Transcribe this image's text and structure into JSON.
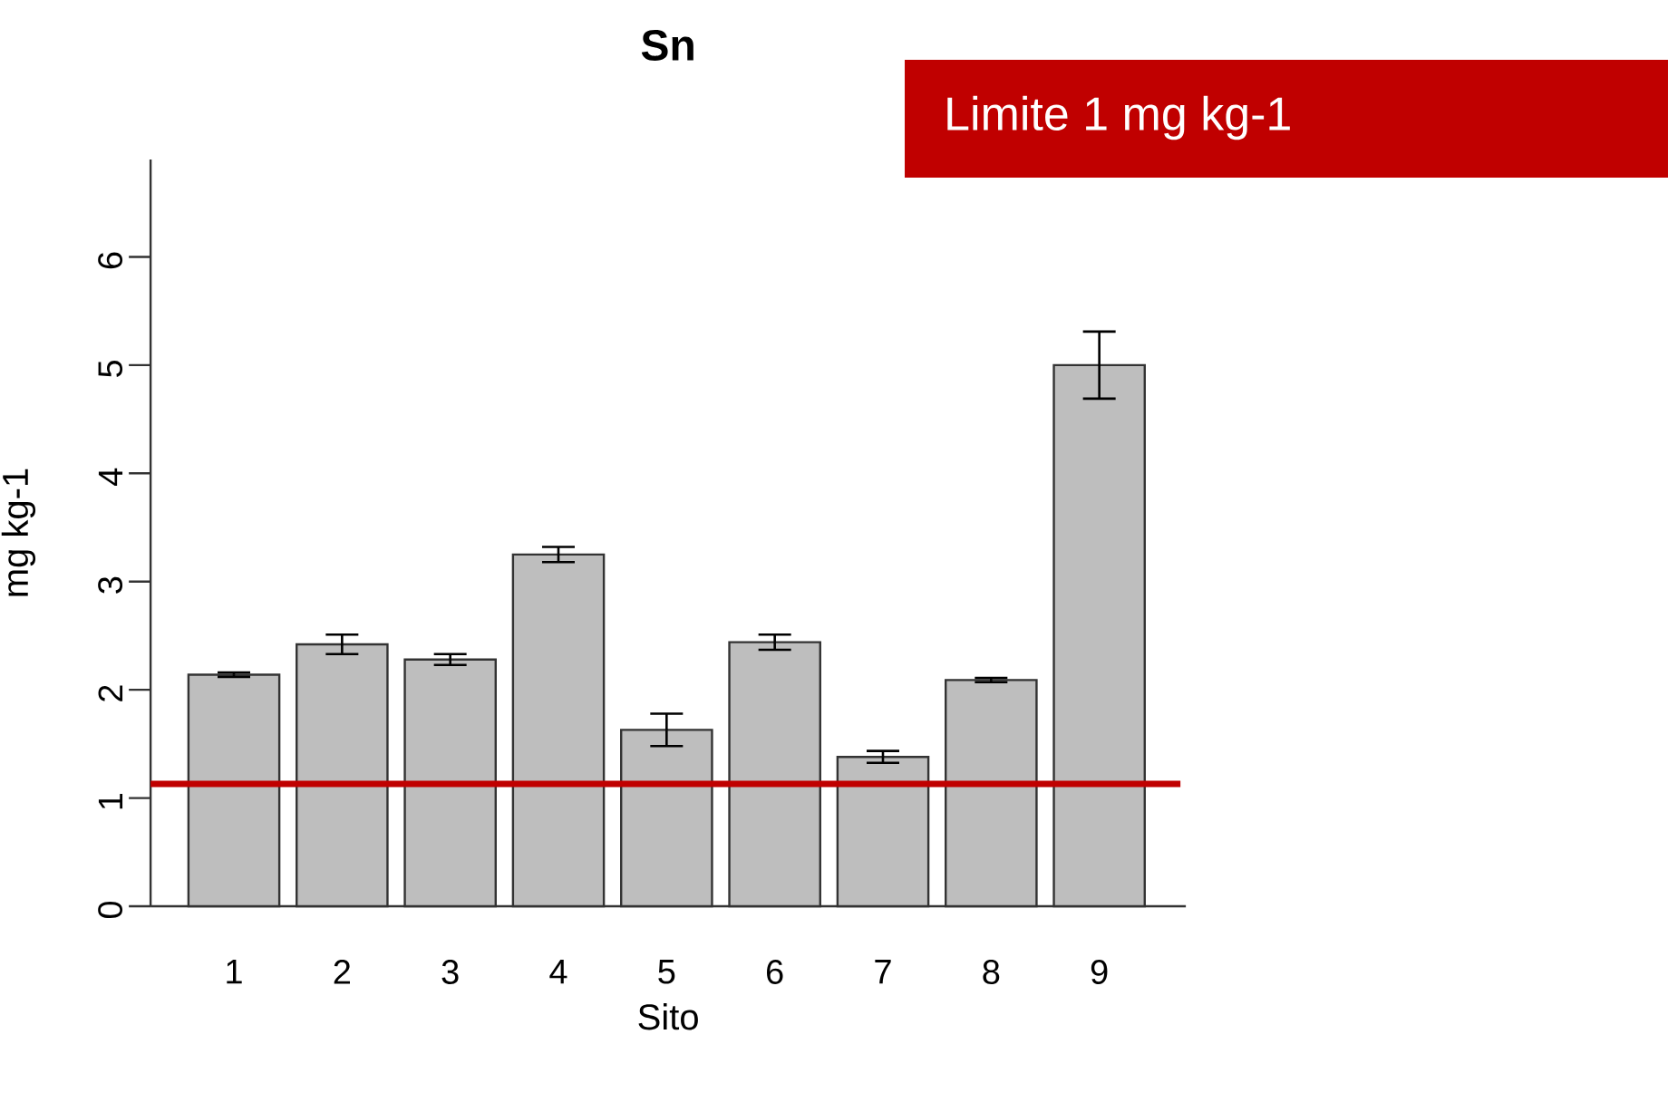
{
  "chart_data": {
    "type": "bar",
    "title": "Sn",
    "xlabel": "Sito",
    "ylabel": "mg kg-1",
    "categories": [
      "1",
      "2",
      "3",
      "4",
      "5",
      "6",
      "7",
      "8",
      "9"
    ],
    "values": [
      2.14,
      2.42,
      2.28,
      3.25,
      1.63,
      2.44,
      1.38,
      2.09,
      5.0
    ],
    "errors": [
      0.02,
      0.09,
      0.05,
      0.07,
      0.15,
      0.07,
      0.055,
      0.02,
      0.31
    ],
    "color": "#bebebe",
    "ylim": [
      0,
      6.9
    ],
    "yticks": [
      0,
      1,
      2,
      3,
      4,
      5,
      6
    ],
    "annotations": [
      "Limite 1 mg kg-1"
    ],
    "ref_lines": [
      {
        "axis": "y",
        "value": 1.13,
        "color": "#c00000"
      }
    ]
  }
}
